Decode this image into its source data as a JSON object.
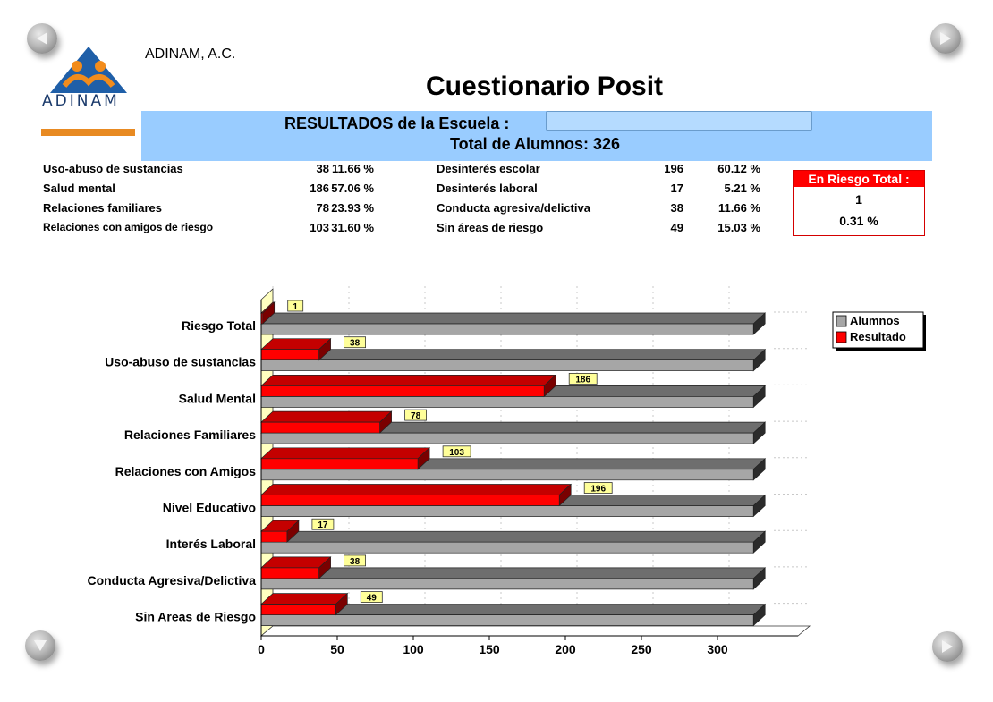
{
  "org_name": "ADINAM, A.C.",
  "logo_text": "ADINAM",
  "title": "Cuestionario Posit",
  "banner": {
    "school_label": "RESULTADOS de la Escuela :",
    "school_value": "",
    "total_label": "Total de Alumnos: 326"
  },
  "stats_left": [
    {
      "label": "Uso-abuso de sustancias",
      "count": "38",
      "pct": "11.66 %"
    },
    {
      "label": "Salud mental",
      "count": "186",
      "pct": "57.06 %"
    },
    {
      "label": "Relaciones familiares",
      "count": "78",
      "pct": "23.93 %"
    },
    {
      "label": "Relaciones con amigos de riesgo",
      "count": "103",
      "pct": "31.60 %"
    }
  ],
  "stats_right": [
    {
      "label": "Desinterés escolar",
      "count": "196",
      "pct": "60.12 %"
    },
    {
      "label": "Desinterés laboral",
      "count": "17",
      "pct": "5.21 %"
    },
    {
      "label": "Conducta agresiva/delictiva",
      "count": "38",
      "pct": "11.66 %"
    },
    {
      "label": "Sin áreas de riesgo",
      "count": "49",
      "pct": "15.03 %"
    }
  ],
  "risk_box": {
    "title": "En Riesgo Total :",
    "count": "1",
    "pct": "0.31 %"
  },
  "colors": {
    "resultado": "#ff0000",
    "alumnos": "#a6a6a6",
    "banner": "#99ccff"
  },
  "chart_data": {
    "type": "bar",
    "orientation": "horizontal",
    "style": "3d",
    "categories": [
      "Riesgo Total",
      "Uso-abuso de sustancias",
      "Salud Mental",
      "Relaciones Familiares",
      "Relaciones con Amigos",
      "Nivel Educativo",
      "Interés Laboral",
      "Conducta Agresiva/Delictiva",
      "Sin Areas de Riesgo"
    ],
    "series": [
      {
        "name": "Alumnos",
        "values": [
          326,
          326,
          326,
          326,
          326,
          326,
          326,
          326,
          326
        ]
      },
      {
        "name": "Resultado",
        "values": [
          1,
          38,
          186,
          78,
          103,
          196,
          17,
          38,
          49
        ]
      }
    ],
    "xlim": [
      0,
      330
    ],
    "xticks": [
      0,
      50,
      100,
      150,
      200,
      250,
      300
    ],
    "grid": true,
    "legend": "top-right"
  }
}
